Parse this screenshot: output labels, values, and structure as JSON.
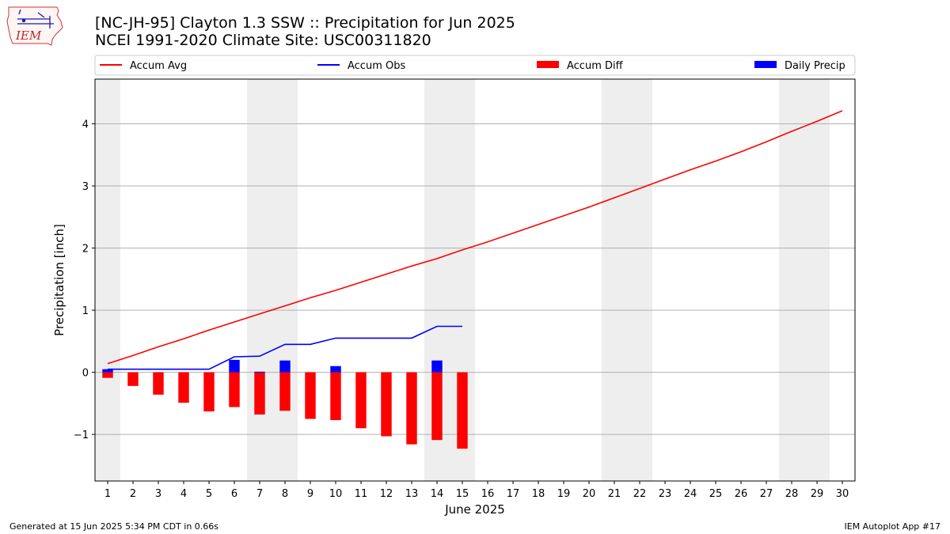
{
  "header": {
    "title_line1": "[NC-JH-95] Clayton 1.3 SSW :: Precipitation for Jun 2025",
    "title_line2": "NCEI 1991-2020 Climate Site: USC00311820",
    "logo_text": "IEM"
  },
  "footer": {
    "left": "Generated at 15 Jun 2025 5:34 PM CDT in 0.66s",
    "right": "IEM Autoplot App #17"
  },
  "colors": {
    "accum_avg": "#ff0000",
    "accum_obs": "#0000ff",
    "accum_diff": "#ff0000",
    "daily_precip": "#0000ff",
    "weekend_band": "#eeeeee",
    "grid": "#b0b0b0"
  },
  "chart_data": {
    "type": "bar",
    "xlabel": "June 2025",
    "ylabel": "Precipitation [inch]",
    "xlim": [
      0.5,
      30.5
    ],
    "ylim": [
      -1.75,
      4.72
    ],
    "yticks": [
      -1,
      0,
      1,
      2,
      3,
      4
    ],
    "ytick_labels": [
      "−1",
      "0",
      "1",
      "2",
      "3",
      "4"
    ],
    "grid": "y",
    "legend_position": "top",
    "days": [
      1,
      2,
      3,
      4,
      5,
      6,
      7,
      8,
      9,
      10,
      11,
      12,
      13,
      14,
      15,
      16,
      17,
      18,
      19,
      20,
      21,
      22,
      23,
      24,
      25,
      26,
      27,
      28,
      29,
      30
    ],
    "weekend_bands": [
      [
        0.5,
        1.5
      ],
      [
        6.5,
        8.5
      ],
      [
        13.5,
        15.5
      ],
      [
        20.5,
        22.5
      ],
      [
        27.5,
        29.5
      ]
    ],
    "series": [
      {
        "name": "Accum Avg",
        "kind": "line",
        "x": [
          1,
          2,
          3,
          4,
          5,
          6,
          7,
          8,
          9,
          10,
          11,
          12,
          13,
          14,
          15,
          16,
          17,
          18,
          19,
          20,
          21,
          22,
          23,
          24,
          25,
          26,
          27,
          28,
          29,
          30
        ],
        "values": [
          0.14,
          0.27,
          0.41,
          0.54,
          0.68,
          0.81,
          0.94,
          1.07,
          1.2,
          1.32,
          1.45,
          1.58,
          1.71,
          1.83,
          1.97,
          2.1,
          2.24,
          2.38,
          2.52,
          2.66,
          2.81,
          2.96,
          3.11,
          3.26,
          3.4,
          3.55,
          3.71,
          3.88,
          4.04,
          4.21
        ]
      },
      {
        "name": "Accum Obs",
        "kind": "line",
        "x": [
          1,
          2,
          3,
          4,
          5,
          6,
          7,
          8,
          9,
          10,
          11,
          12,
          13,
          14,
          15
        ],
        "values": [
          0.05,
          0.05,
          0.05,
          0.05,
          0.05,
          0.25,
          0.26,
          0.45,
          0.45,
          0.55,
          0.55,
          0.55,
          0.55,
          0.74,
          0.74
        ]
      },
      {
        "name": "Accum Diff",
        "kind": "bar",
        "x": [
          1,
          2,
          3,
          4,
          5,
          6,
          7,
          8,
          9,
          10,
          11,
          12,
          13,
          14,
          15
        ],
        "values": [
          -0.09,
          -0.22,
          -0.36,
          -0.49,
          -0.63,
          -0.56,
          -0.68,
          -0.62,
          -0.75,
          -0.77,
          -0.9,
          -1.03,
          -1.16,
          -1.09,
          -1.23
        ]
      },
      {
        "name": "Daily Precip",
        "kind": "bar",
        "x": [
          1,
          2,
          3,
          4,
          5,
          6,
          7,
          8,
          9,
          10,
          11,
          12,
          13,
          14,
          15
        ],
        "values": [
          0.05,
          0,
          0,
          0,
          0,
          0.2,
          0.01,
          0.19,
          0,
          0.1,
          0,
          0,
          0,
          0.19,
          0
        ]
      }
    ]
  }
}
